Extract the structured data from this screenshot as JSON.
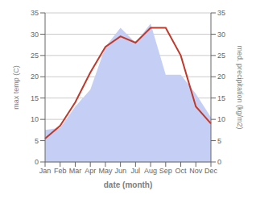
{
  "chart_data": {
    "type": "line",
    "categories": [
      "Jan",
      "Feb",
      "Mar",
      "Apr",
      "May",
      "Jun",
      "Jul",
      "Aug",
      "Sep",
      "Oct",
      "Nov",
      "Dec"
    ],
    "xlabel": "date (month)",
    "ylabel": "max temp (C)",
    "y2label": "med. precipitation (kg/m2)",
    "ylim": [
      0,
      35
    ],
    "yticks": [
      0,
      5,
      10,
      15,
      20,
      25,
      30,
      35
    ],
    "y2lim": [
      0,
      35
    ],
    "y2ticks": [
      0,
      5,
      10,
      15,
      20,
      25,
      30,
      35
    ],
    "grid": true,
    "series": [
      {
        "type": "area",
        "axis": "y2",
        "color": "#c5cff5",
        "values": [
          7.5,
          8.0,
          13.0,
          17.0,
          27.0,
          31.5,
          28.0,
          32.5,
          20.5,
          20.5,
          16.0,
          10.5
        ]
      },
      {
        "type": "line",
        "color": "#c0392b",
        "values": [
          5.5,
          8.5,
          14.0,
          21.0,
          27.0,
          29.5,
          28.0,
          31.5,
          31.5,
          25.0,
          13.0,
          9.0
        ]
      }
    ]
  }
}
